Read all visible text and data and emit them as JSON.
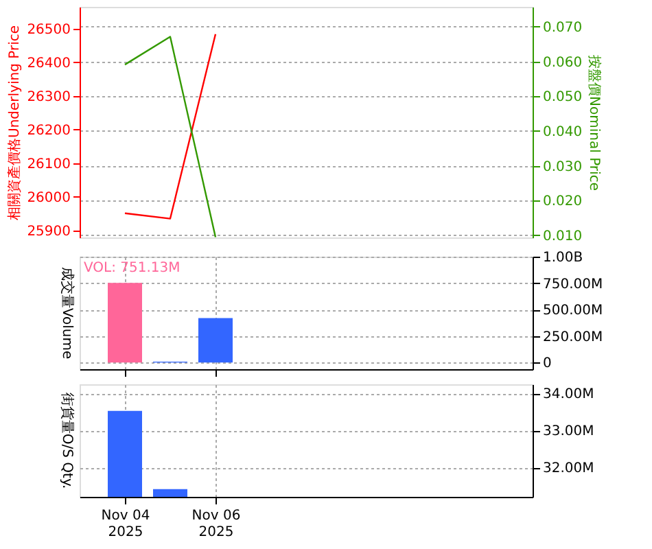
{
  "chart_data": [
    {
      "type": "line",
      "x": [
        "2025-11-04",
        "2025-11-05",
        "2025-11-06"
      ],
      "ylabel": "相關資產價格Underlying Price",
      "y2label": "按盤價Nominal Price",
      "series": [
        {
          "color": "#ff0000",
          "values": [
            25951,
            25935,
            26484
          ]
        },
        {
          "color": "#339900",
          "values": [
            0.0591,
            0.0671,
            0.0095
          ],
          "axis": "y2"
        }
      ],
      "xlim": [
        "2025-11-03",
        "2025-11-13"
      ],
      "xticks": [
        {
          "value": "2025-11-04",
          "label": null
        },
        {
          "value": "2025-11-06",
          "label": null
        }
      ],
      "ylim": [
        25879,
        26565
      ],
      "yticks": [
        25900,
        26000,
        26100,
        26200,
        26300,
        26400,
        26500
      ],
      "y2lim": [
        0.0094,
        0.0757
      ],
      "y2ticks": [
        {
          "value": 0.01,
          "label": "0.010"
        },
        {
          "value": 0.02,
          "label": "0.020"
        },
        {
          "value": 0.03,
          "label": "0.030"
        },
        {
          "value": 0.04,
          "label": "0.040"
        },
        {
          "value": 0.05,
          "label": "0.050"
        },
        {
          "value": 0.06,
          "label": "0.060"
        },
        {
          "value": 0.07,
          "label": "0.070"
        }
      ],
      "grid": true,
      "tick_labels": "y",
      "marker": "none"
    },
    {
      "type": "bar",
      "x": [
        "2025-11-04",
        "2025-11-05",
        "2025-11-06"
      ],
      "ylabel": "成交量Volume",
      "values": [
        751130000,
        8000000,
        420000000
      ],
      "colors": [
        "#ff6699",
        "#3366ff",
        "#3366ff"
      ],
      "xlim": [
        "2025-11-03",
        "2025-11-13"
      ],
      "xticks": [
        {
          "value": "2025-11-04",
          "label": null
        },
        {
          "value": "2025-11-06",
          "label": null
        }
      ],
      "ylim": [
        -64000000,
        1000000000
      ],
      "yticks": [
        0,
        {
          "value": 250000000,
          "label": "250.00M"
        },
        {
          "value": 500000000,
          "label": "500.00M"
        },
        {
          "value": 750000000,
          "label": "750.00M"
        },
        {
          "value": 1000000000,
          "label": "1.00B"
        }
      ],
      "annotations": [
        "VOL: 751.13M"
      ],
      "grid": true,
      "tick_labels": "y"
    },
    {
      "type": "bar",
      "x": [
        "2025-11-04",
        "2025-11-05"
      ],
      "ylabel": "街貨量O/S Qty.",
      "values": [
        33530000,
        31420000
      ],
      "colors": [
        "#3366ff",
        "#3366ff"
      ],
      "xlim": [
        "2025-11-03",
        "2025-11-13"
      ],
      "xticks": [
        {
          "value": "2025-11-04",
          "label": "Nov 04\n2025"
        },
        {
          "value": "2025-11-06",
          "label": "Nov 06\n2025"
        }
      ],
      "ylim": [
        31210000,
        34250000
      ],
      "yticks": [
        {
          "value": 32000000,
          "label": "32.00M"
        },
        {
          "value": 33000000,
          "label": "33.00M"
        },
        {
          "value": 34000000,
          "label": "34.00M"
        }
      ],
      "grid": true
    }
  ]
}
